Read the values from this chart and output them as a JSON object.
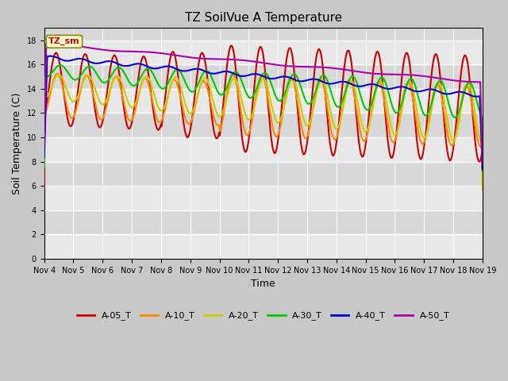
{
  "title": "TZ SoilVue A Temperature",
  "xlabel": "Time",
  "ylabel": "Soil Temperature (C)",
  "ylim": [
    0,
    19
  ],
  "yticks": [
    0,
    2,
    4,
    6,
    8,
    10,
    12,
    14,
    16,
    18
  ],
  "xtick_labels": [
    "Nov 4",
    "Nov 5",
    "Nov 6",
    "Nov 7",
    "Nov 8",
    "Nov 9",
    "Nov 10",
    "Nov 11",
    "Nov 12",
    "Nov 13",
    "Nov 14",
    "Nov 15",
    "Nov 16",
    "Nov 17",
    "Nov 18",
    "Nov 19"
  ],
  "legend_labels": [
    "A-05_T",
    "A-10_T",
    "A-20_T",
    "A-30_T",
    "A-40_T",
    "A-50_T"
  ],
  "line_colors": [
    "#cc0000",
    "#ff8800",
    "#cccc00",
    "#00cc00",
    "#0000cc",
    "#aa00aa"
  ],
  "annotation_text": "TZ_sm",
  "annotation_color": "#cc0000",
  "annotation_bg": "#ffffcc",
  "band_colors": [
    "#e8e8e8",
    "#d8d8d8"
  ],
  "line_width": 1.5,
  "figsize": [
    6.4,
    4.8
  ],
  "dpi": 100
}
